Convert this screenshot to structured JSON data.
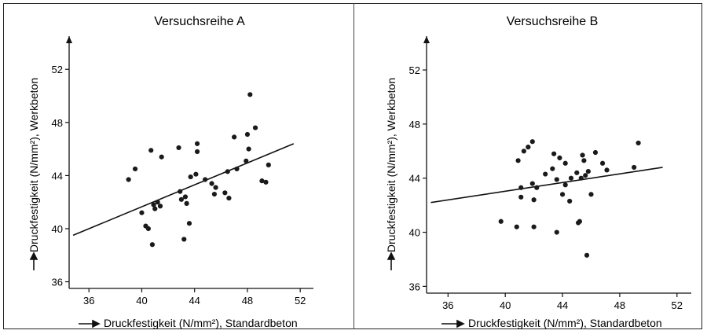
{
  "chart_data": [
    {
      "type": "scatter",
      "title": "Versuchsreihe A",
      "xlabel": "Druckfestigkeit (N/mm²), Standardbeton",
      "ylabel": "Druckfestigkeit (N/mm²), Werkbeton",
      "xlim": [
        34.5,
        53
      ],
      "ylim": [
        35.5,
        54.5
      ],
      "xticks": [
        "36",
        "40",
        "44",
        "48",
        "52"
      ],
      "yticks": [
        "36",
        "40",
        "44",
        "48",
        "52"
      ],
      "grid": false,
      "points": [
        [
          39,
          43.7
        ],
        [
          39.5,
          44.5
        ],
        [
          40,
          41.2
        ],
        [
          40.3,
          40.2
        ],
        [
          40.5,
          40.0
        ],
        [
          40.7,
          45.9
        ],
        [
          40.8,
          38.8
        ],
        [
          40.9,
          41.8
        ],
        [
          41,
          41.5
        ],
        [
          41.2,
          42.0
        ],
        [
          41.4,
          41.7
        ],
        [
          41.5,
          45.4
        ],
        [
          42.8,
          46.1
        ],
        [
          42.9,
          42.8
        ],
        [
          43,
          42.2
        ],
        [
          43.2,
          39.2
        ],
        [
          43.3,
          42.4
        ],
        [
          43.4,
          41.9
        ],
        [
          43.6,
          40.4
        ],
        [
          43.7,
          43.9
        ],
        [
          44.1,
          44.1
        ],
        [
          44.2,
          45.8
        ],
        [
          44.2,
          46.4
        ],
        [
          44.8,
          43.7
        ],
        [
          45.3,
          43.4
        ],
        [
          45.5,
          42.6
        ],
        [
          45.6,
          43.1
        ],
        [
          46.3,
          42.7
        ],
        [
          46.5,
          44.3
        ],
        [
          46.6,
          42.3
        ],
        [
          47,
          46.9
        ],
        [
          47.2,
          44.5
        ],
        [
          47.9,
          45.1
        ],
        [
          48,
          47.1
        ],
        [
          48.1,
          46.0
        ],
        [
          48.2,
          50.1
        ],
        [
          48.6,
          47.6
        ],
        [
          49.1,
          43.6
        ],
        [
          49.4,
          43.5
        ],
        [
          49.6,
          44.8
        ]
      ],
      "regression": [
        [
          34.8,
          39.5
        ],
        [
          51.5,
          46.4
        ]
      ]
    },
    {
      "type": "scatter",
      "title": "Versuchsreihe B",
      "xlabel": "Druckfestigkeit (N/mm²), Standardbeton",
      "ylabel": "Druckfestigkeit (N/mm²), Werkbeton",
      "xlim": [
        34.5,
        53
      ],
      "ylim": [
        35.5,
        54.5
      ],
      "xticks": [
        "36",
        "40",
        "44",
        "48",
        "52"
      ],
      "yticks": [
        "36",
        "40",
        "44",
        "48",
        "52"
      ],
      "grid": false,
      "points": [
        [
          39.7,
          40.8
        ],
        [
          40.8,
          40.4
        ],
        [
          40.9,
          45.3
        ],
        [
          41.1,
          42.6
        ],
        [
          41.1,
          43.3
        ],
        [
          41.3,
          46.0
        ],
        [
          41.6,
          46.3
        ],
        [
          41.9,
          43.6
        ],
        [
          41.9,
          46.7
        ],
        [
          42,
          42.4
        ],
        [
          42,
          40.4
        ],
        [
          42.2,
          43.3
        ],
        [
          42.8,
          44.3
        ],
        [
          43.3,
          44.7
        ],
        [
          43.4,
          45.8
        ],
        [
          43.6,
          40.0
        ],
        [
          43.6,
          43.9
        ],
        [
          43.8,
          45.5
        ],
        [
          44,
          42.8
        ],
        [
          44.2,
          43.5
        ],
        [
          44.2,
          45.1
        ],
        [
          44.5,
          42.3
        ],
        [
          44.6,
          44.0
        ],
        [
          45,
          44.4
        ],
        [
          45.1,
          40.7
        ],
        [
          45.2,
          40.8
        ],
        [
          45.3,
          44.0
        ],
        [
          45.4,
          45.7
        ],
        [
          45.5,
          45.3
        ],
        [
          45.6,
          44.2
        ],
        [
          45.7,
          38.3
        ],
        [
          45.8,
          44.5
        ],
        [
          46,
          42.8
        ],
        [
          46.3,
          45.9
        ],
        [
          46.8,
          45.1
        ],
        [
          47.1,
          44.6
        ],
        [
          49,
          44.8
        ],
        [
          49.3,
          46.6
        ]
      ],
      "regression": [
        [
          34.8,
          42.2
        ],
        [
          51,
          44.8
        ]
      ]
    }
  ]
}
